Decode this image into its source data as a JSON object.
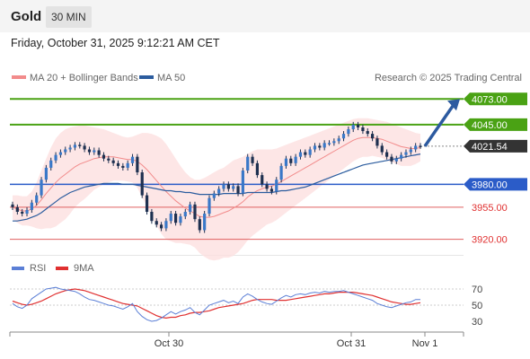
{
  "header": {
    "title": "Gold",
    "timeframe": "30 MIN"
  },
  "datetime": "Friday, October 31, 2025 9:12:21 AM CET",
  "legend": {
    "ma_bb": {
      "label": "MA 20 + Bollinger Bands",
      "color": "#f28b8b"
    },
    "ma50": {
      "label": "MA 50",
      "color": "#2b5c9e"
    },
    "credit": "Research © 2025 Trading Central"
  },
  "chart_data": {
    "type": "candlestick",
    "price_axis": {
      "min": 3905,
      "max": 4085
    },
    "levels": [
      {
        "label": "4073.00",
        "value": 4073,
        "kind": "resistance",
        "color": "#4aa214"
      },
      {
        "label": "4045.00",
        "value": 4045,
        "kind": "resistance",
        "color": "#4aa214"
      },
      {
        "label": "4021.54",
        "value": 4021.54,
        "kind": "last",
        "color": "#333333"
      },
      {
        "label": "3980.00",
        "value": 3980,
        "kind": "pivot",
        "color": "#2b5cc8"
      },
      {
        "label": "3955.00",
        "value": 3955,
        "kind": "support",
        "color": "#e06060"
      },
      {
        "label": "3920.00",
        "value": 3920,
        "kind": "support",
        "color": "#e06060"
      }
    ],
    "x_ticks": [
      "Oct 30",
      "Oct 31",
      "Nov 1"
    ],
    "close": [
      3955,
      3950,
      3948,
      3952,
      3960,
      3968,
      3985,
      3998,
      4006,
      4012,
      4015,
      4018,
      4020,
      4023,
      4022,
      4018,
      4015,
      4017,
      4012,
      4008,
      4006,
      4003,
      4000,
      3998,
      4003,
      4010,
      3993,
      3968,
      3950,
      3940,
      3936,
      3932,
      3940,
      3948,
      3938,
      3945,
      3950,
      3958,
      3942,
      3930,
      3948,
      3965,
      3970,
      3975,
      3980,
      3975,
      3978,
      3970,
      3995,
      4010,
      4003,
      3990,
      3980,
      3975,
      3972,
      3985,
      4000,
      4008,
      4003,
      4010,
      4015,
      4012,
      4018,
      4022,
      4020,
      4025,
      4025,
      4027,
      4030,
      4035,
      4040,
      4045,
      4042,
      4038,
      4035,
      4030,
      4022,
      4015,
      4010,
      4005,
      4008,
      4012,
      4015,
      4018,
      4022,
      4021.54
    ],
    "ma20": [
      3955,
      3953,
      3951,
      3951,
      3953,
      3957,
      3963,
      3970,
      3976,
      3982,
      3987,
      3991,
      3995,
      3999,
      4002,
      4004,
      4006,
      4008,
      4009,
      4010,
      4010,
      4010,
      4009,
      4008,
      4007,
      4007,
      4005,
      4001,
      3996,
      3990,
      3984,
      3978,
      3972,
      3967,
      3962,
      3958,
      3954,
      3951,
      3948,
      3945,
      3944,
      3944,
      3945,
      3947,
      3949,
      3951,
      3954,
      3957,
      3961,
      3966,
      3970,
      3973,
      3975,
      3977,
      3978,
      3980,
      3983,
      3986,
      3989,
      3992,
      3995,
      3998,
      4001,
      4004,
      4007,
      4010,
      4013,
      4016,
      4019,
      4022,
      4025,
      4028,
      4030,
      4031,
      4031,
      4031,
      4030,
      4029,
      4027,
      4025,
      4023,
      4021,
      4020,
      4019,
      4019,
      4020
    ],
    "bb_upper": [
      3968,
      3968,
      3967,
      3967,
      3972,
      3982,
      3995,
      4008,
      4020,
      4030,
      4036,
      4040,
      4042,
      4043,
      4044,
      4044,
      4043,
      4042,
      4041,
      4040,
      4038,
      4036,
      4034,
      4032,
      4031,
      4032,
      4034,
      4036,
      4036,
      4035,
      4033,
      4030,
      4024,
      4016,
      4008,
      4000,
      3993,
      3988,
      3985,
      3985,
      3987,
      3990,
      3993,
      3996,
      3998,
      4002,
      4006,
      4008,
      4010,
      4013,
      4016,
      4018,
      4018,
      4018,
      4018,
      4019,
      4021,
      4023,
      4025,
      4027,
      4029,
      4031,
      4033,
      4035,
      4037,
      4039,
      4041,
      4043,
      4045,
      4047,
      4049,
      4051,
      4052,
      4052,
      4052,
      4051,
      4050,
      4049,
      4048,
      4046,
      4044,
      4042,
      4040,
      4038,
      4036,
      4035
    ],
    "bb_lower": [
      3942,
      3938,
      3935,
      3935,
      3934,
      3932,
      3931,
      3932,
      3932,
      3934,
      3938,
      3942,
      3948,
      3955,
      3960,
      3964,
      3969,
      3974,
      3977,
      3980,
      3982,
      3984,
      3984,
      3984,
      3983,
      3982,
      3976,
      3966,
      3956,
      3945,
      3935,
      3926,
      3920,
      3918,
      3916,
      3916,
      3915,
      3914,
      3911,
      3905,
      3901,
      3898,
      3897,
      3898,
      3900,
      3900,
      3902,
      3906,
      3912,
      3919,
      3924,
      3928,
      3932,
      3936,
      3938,
      3941,
      3945,
      3949,
      3953,
      3957,
      3961,
      3965,
      3969,
      3973,
      3977,
      3981,
      3985,
      3989,
      3993,
      3997,
      4001,
      4005,
      4008,
      4010,
      4010,
      4011,
      4010,
      4009,
      4006,
      4004,
      4002,
      4000,
      4000,
      4000,
      4002,
      4005
    ],
    "ma50": [
      3940,
      3940,
      3941,
      3942,
      3944,
      3946,
      3949,
      3953,
      3957,
      3961,
      3965,
      3968,
      3971,
      3973,
      3975,
      3977,
      3978,
      3979,
      3980,
      3981,
      3981,
      3981,
      3981,
      3980,
      3980,
      3980,
      3979,
      3978,
      3977,
      3976,
      3975,
      3974,
      3973,
      3973,
      3972,
      3972,
      3971,
      3971,
      3970,
      3969,
      3969,
      3969,
      3969,
      3969,
      3970,
      3970,
      3970,
      3970,
      3970,
      3971,
      3971,
      3971,
      3971,
      3971,
      3971,
      3972,
      3973,
      3973,
      3974,
      3975,
      3976,
      3977,
      3979,
      3981,
      3983,
      3985,
      3987,
      3989,
      3991,
      3993,
      3995,
      3997,
      3999,
      4001,
      4002,
      4003,
      4004,
      4005,
      4006,
      4007,
      4008,
      4009,
      4010,
      4011,
      4012,
      4013
    ],
    "projection": {
      "from": 4021.54,
      "to": 4073
    },
    "rsi": {
      "levels": [
        70,
        50,
        30
      ],
      "legend": [
        {
          "name": "RSI",
          "color": "#5b7fd6"
        },
        {
          "name": "9MA",
          "color": "#e03030"
        }
      ],
      "rsi_values": [
        52,
        48,
        46,
        50,
        58,
        62,
        66,
        70,
        71,
        72,
        70,
        69,
        68,
        67,
        64,
        60,
        57,
        56,
        54,
        52,
        50,
        49,
        47,
        45,
        48,
        52,
        42,
        36,
        32,
        30,
        31,
        34,
        38,
        42,
        39,
        42,
        44,
        47,
        41,
        38,
        44,
        50,
        52,
        54,
        56,
        53,
        55,
        52,
        60,
        64,
        61,
        57,
        54,
        52,
        51,
        55,
        59,
        62,
        60,
        63,
        64,
        63,
        65,
        66,
        65,
        67,
        66,
        67,
        67,
        68,
        66,
        64,
        62,
        60,
        58,
        56,
        52,
        50,
        48,
        47,
        49,
        51,
        53,
        54,
        57,
        57
      ],
      "ma9_values": [
        55,
        53,
        51,
        50,
        51,
        53,
        55,
        58,
        61,
        64,
        66,
        68,
        69,
        70,
        69,
        68,
        66,
        64,
        62,
        60,
        58,
        56,
        54,
        52,
        51,
        50,
        49,
        46,
        43,
        40,
        37,
        35,
        34,
        35,
        35,
        37,
        38,
        40,
        41,
        41,
        42,
        43,
        45,
        47,
        48,
        49,
        50,
        51,
        52,
        54,
        56,
        57,
        57,
        57,
        57,
        56,
        56,
        56,
        57,
        58,
        59,
        60,
        61,
        62,
        63,
        64,
        64,
        65,
        66,
        66,
        66,
        66,
        65,
        64,
        63,
        62,
        60,
        58,
        56,
        54,
        53,
        52,
        51,
        51,
        52,
        53
      ]
    }
  }
}
